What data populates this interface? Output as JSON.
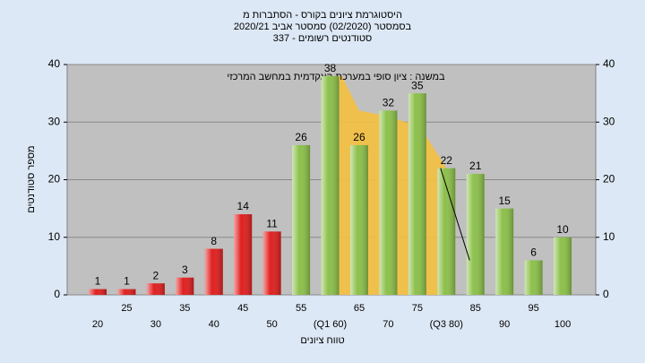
{
  "chart_data": {
    "type": "bar",
    "title_lines": [
      "היסטוגרמת ציונים בקורס - הסתברות מ",
      "בסמסטר  (02/2020)  סמסטר אביב 2020/21",
      "סטודנטים רשומים - 337"
    ],
    "annotation": "במשנה : ציון סופי במערכת האקדמית במחשב המרכזי",
    "y_label": "מספר סטודנטים",
    "x_label": "טווח ציונים",
    "categories": [
      "20",
      "25",
      "30",
      "35",
      "40",
      "45",
      "50",
      "55",
      "(Q1 60)",
      "65",
      "70",
      "75",
      "(Q3 80)",
      "85",
      "90",
      "95",
      "100"
    ],
    "values": [
      1,
      1,
      2,
      3,
      8,
      14,
      11,
      26,
      38,
      26,
      32,
      35,
      22,
      21,
      15,
      6,
      10
    ],
    "colors": [
      "#e02020",
      "#e02020",
      "#e02020",
      "#e02020",
      "#e02020",
      "#e02020",
      "#e02020",
      "#8cc04a",
      "#8cc04a",
      "#8cc04a",
      "#8cc04a",
      "#8cc04a",
      "#8cc04a",
      "#8cc04a",
      "#8cc04a",
      "#8cc04a",
      "#8cc04a"
    ],
    "quartile_area": {
      "x": [
        60,
        62,
        65,
        70,
        73,
        75,
        80
      ],
      "values": [
        38,
        38,
        32,
        31,
        30,
        30,
        22
      ],
      "color": "#f5c040"
    },
    "trend_line": {
      "x": [
        79,
        84
      ],
      "values": [
        22,
        6
      ]
    },
    "ylim": [
      0,
      40
    ],
    "yticks": [
      0,
      10,
      20,
      30,
      40
    ],
    "grid": true
  }
}
